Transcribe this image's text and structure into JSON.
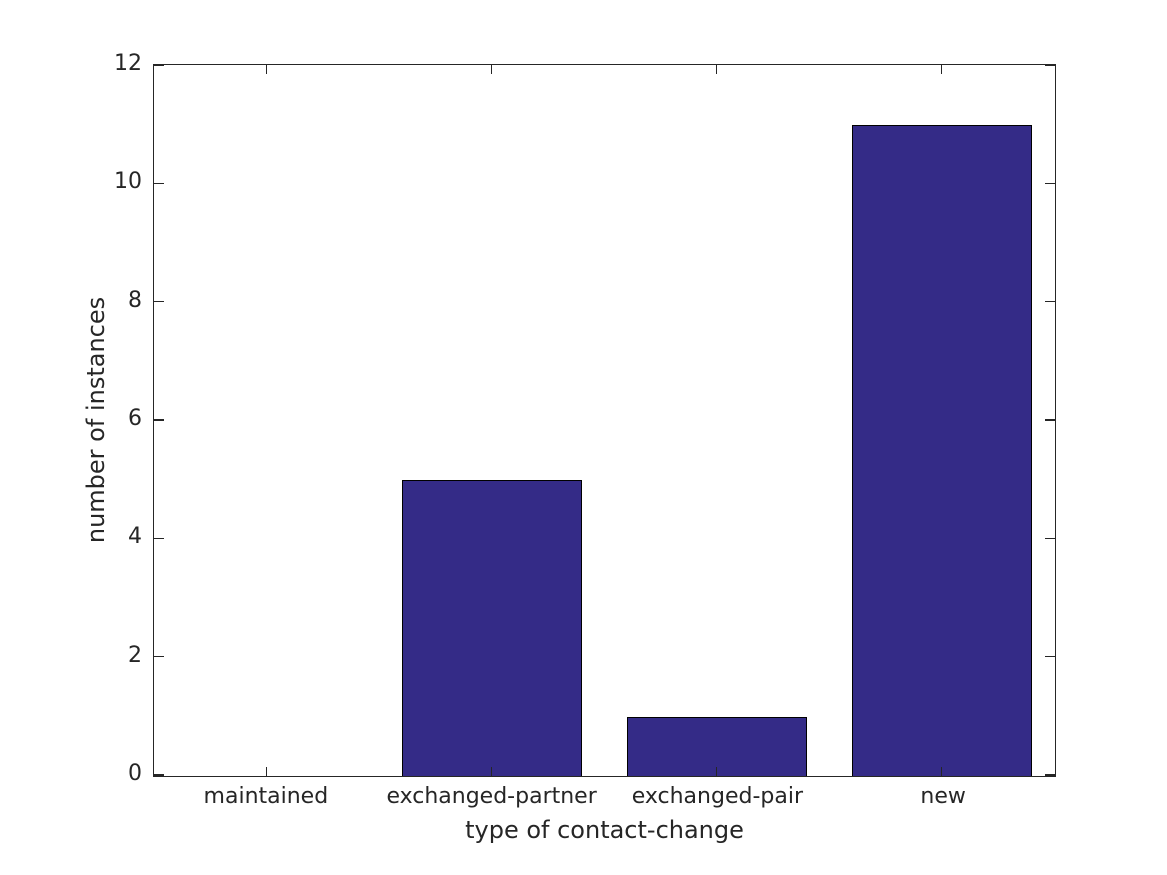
{
  "chart_data": {
    "type": "bar",
    "categories": [
      "maintained",
      "exchanged-partner",
      "exchanged-pair",
      "new"
    ],
    "values": [
      0,
      5,
      1,
      11
    ],
    "title": "",
    "xlabel": "type of contact-change",
    "ylabel": "number of instances",
    "ylim": [
      0,
      12
    ],
    "yticks": [
      0,
      2,
      4,
      6,
      8,
      10,
      12
    ],
    "bar_width_fraction": 0.8,
    "grid": false,
    "legend": null,
    "colors": {
      "bar_fill": "#342b87",
      "bar_edge": "#000000",
      "axis": "#262626",
      "text": "#262626",
      "background": "#ffffff"
    }
  }
}
